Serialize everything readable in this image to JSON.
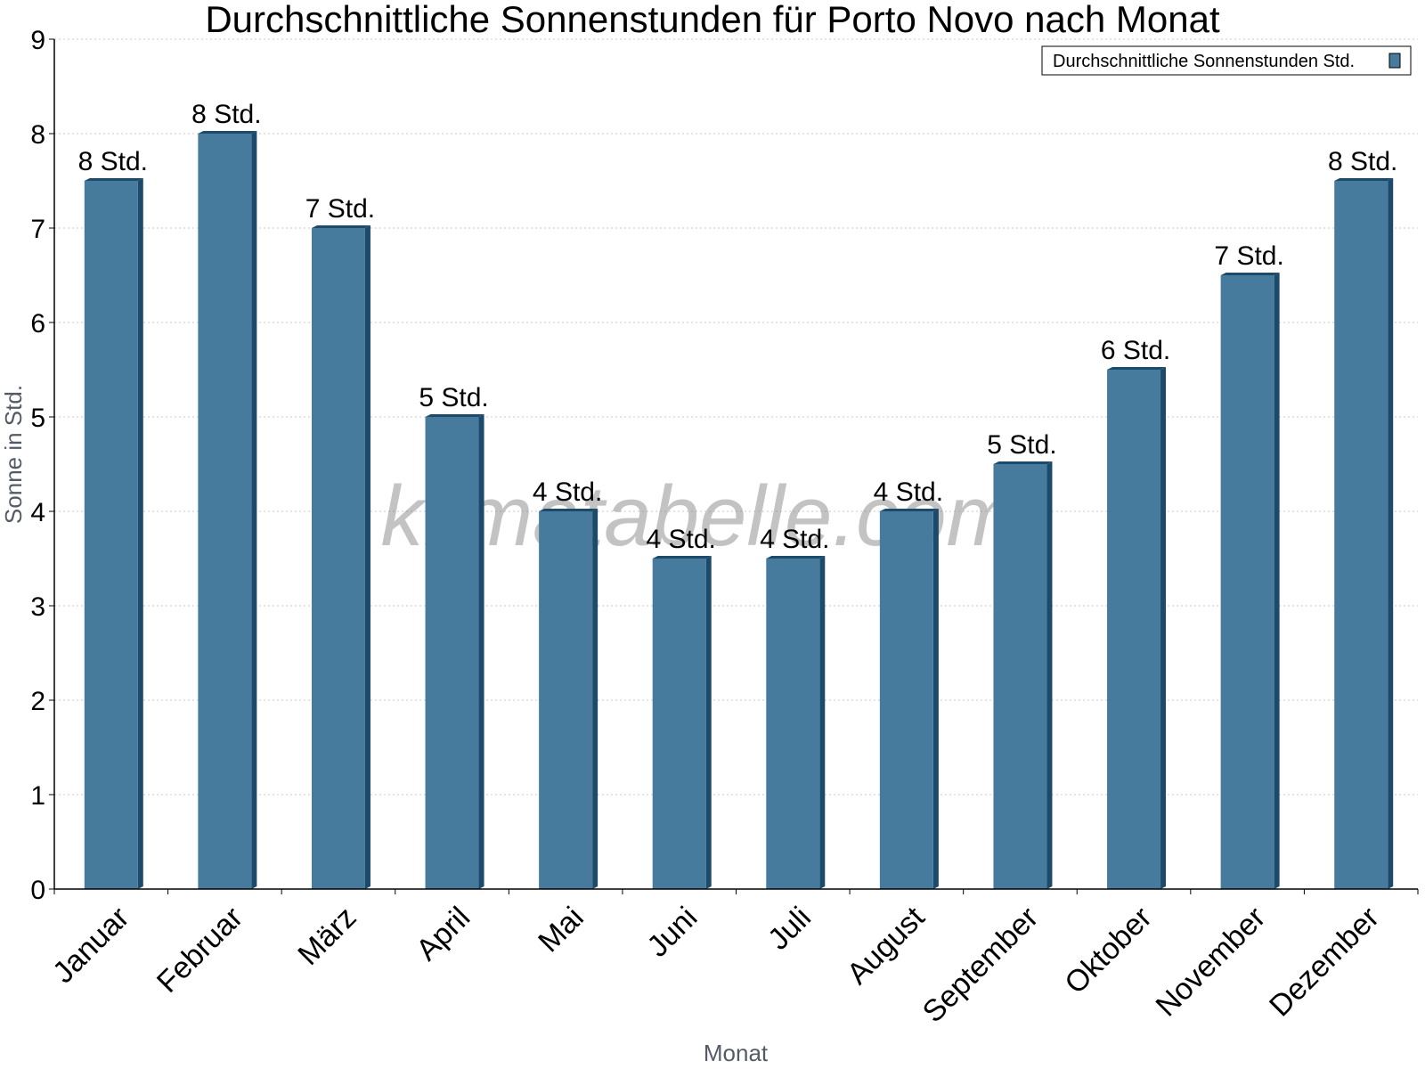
{
  "chart_data": {
    "type": "bar",
    "title": "Durchschnittliche Sonnenstunden für Porto Novo nach Monat",
    "xlabel": "Monat",
    "ylabel": "Sonne in Std.",
    "ylim": [
      0,
      9
    ],
    "yticks": [
      "0",
      "1",
      "2",
      "3",
      "4",
      "5",
      "6",
      "7",
      "8",
      "9"
    ],
    "grid": true,
    "legend_position": "top-right",
    "categories": [
      "Januar",
      "Februar",
      "März",
      "April",
      "Mai",
      "Juni",
      "Juli",
      "August",
      "September",
      "Oktober",
      "November",
      "Dezember"
    ],
    "series": [
      {
        "name": "Durchschnittliche Sonnenstunden Std.",
        "values": [
          7.5,
          8,
          7,
          5,
          4,
          3.5,
          3.5,
          4,
          4.5,
          5.5,
          6.5,
          7.5
        ],
        "labels": [
          "8 Std.",
          "8 Std.",
          "7 Std.",
          "5 Std.",
          "4 Std.",
          "4 Std.",
          "4 Std.",
          "4 Std.",
          "5 Std.",
          "6 Std.",
          "7 Std.",
          "8 Std."
        ],
        "color": "#467b9e",
        "edge_color": "#1c4a6b"
      }
    ],
    "watermark": "klimatabelle.com"
  }
}
